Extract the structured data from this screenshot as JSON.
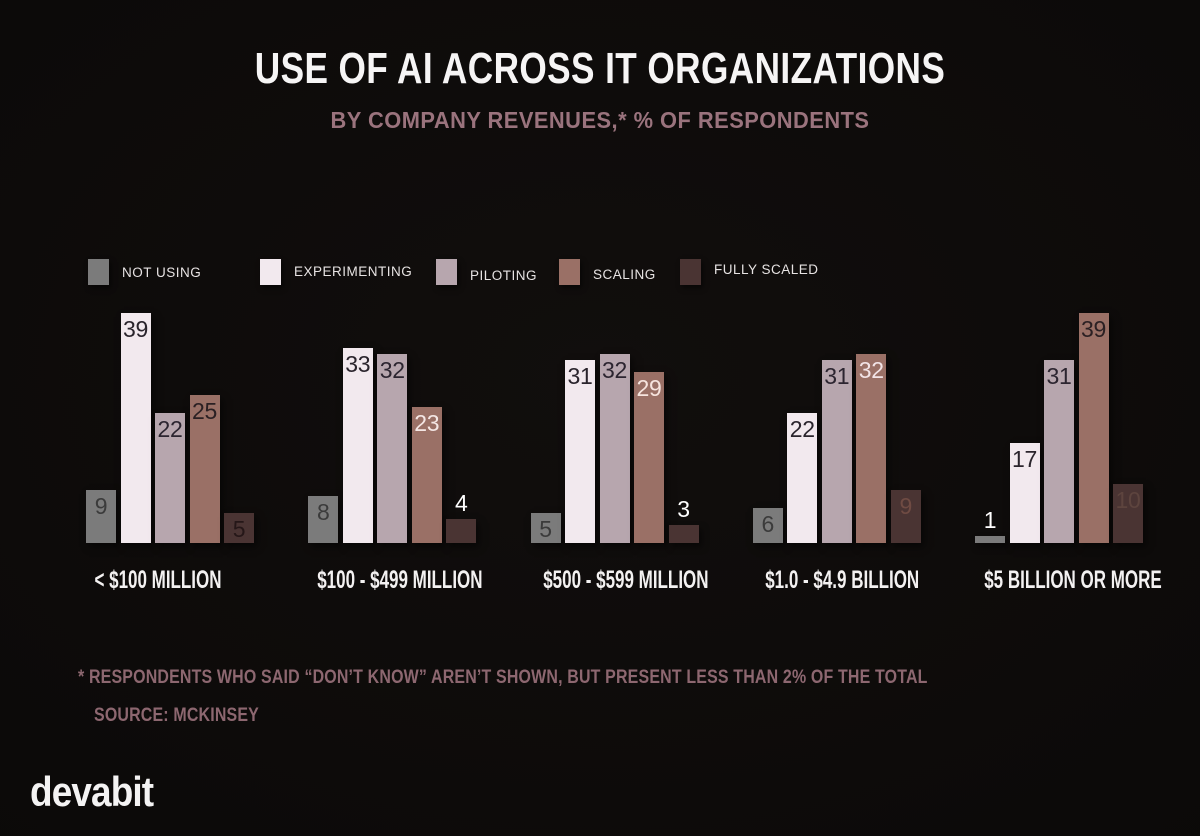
{
  "header": {
    "title": "USE OF AI ACROSS IT ORGANIZATIONS",
    "subtitle": "BY COMPANY REVENUES,* % OF RESPONDENTS"
  },
  "chart_data": {
    "type": "bar",
    "title": "USE OF AI ACROSS IT ORGANIZATIONS",
    "subtitle": "BY COMPANY REVENUES,* % OF RESPONDENTS",
    "unit": "% of respondents",
    "categories": [
      "< $100 MILLION",
      "$100 - $499 MILLION",
      "$500 - $599 MILLION",
      "$1.0 - $4.9 BILLION",
      "$5 BILLION OR MORE"
    ],
    "series": [
      {
        "name": "NOT USING",
        "color": "#7b7b7b",
        "values": [
          9,
          8,
          5,
          6,
          1
        ],
        "label_pos": [
          "in",
          "in",
          "in",
          "in",
          "above"
        ],
        "label_colors": [
          "#3b3b3b",
          "#3b3b3b",
          "#3b3b3b",
          "#3b3b3b",
          "#ffffff"
        ]
      },
      {
        "name": "EXPERIMENTING",
        "color": "#f2e9ee",
        "values": [
          39,
          33,
          31,
          22,
          17
        ],
        "label_pos": [
          "in",
          "in",
          "in",
          "in",
          "in"
        ],
        "label_colors": [
          "#2a242c",
          "#2a242c",
          "#2a242c",
          "#2a242c",
          "#2a242c"
        ]
      },
      {
        "name": "PILOTING",
        "color": "#b7a6ae",
        "values": [
          22,
          32,
          32,
          31,
          31
        ],
        "label_pos": [
          "in",
          "in",
          "in",
          "in",
          "in"
        ],
        "label_colors": [
          "#2c2530",
          "#2c2530",
          "#2c2530",
          "#2c2530",
          "#2c2530"
        ]
      },
      {
        "name": "SCALING",
        "color": "#9a7066",
        "values": [
          25,
          23,
          29,
          32,
          39
        ],
        "label_pos": [
          "in",
          "in",
          "in",
          "in",
          "in"
        ],
        "label_colors": [
          "#2b2023",
          "#f4e6e4",
          "#f6e4de",
          "#f2e3e6",
          "#2b2023"
        ]
      },
      {
        "name": "FULLY SCALED",
        "color": "#4a3433",
        "values": [
          5,
          4,
          3,
          9,
          10
        ],
        "label_pos": [
          "in",
          "above",
          "above",
          "in",
          "in"
        ],
        "label_colors": [
          "#251718",
          "#ffffff",
          "#ffffff",
          "#6f4b43",
          "#5d443e"
        ]
      }
    ],
    "ylim": [
      0,
      40
    ],
    "grid": false,
    "legend_position": "top",
    "value_labels": true
  },
  "footnote": {
    "line1": "* RESPONDENTS WHO SAID “DON’T KNOW” AREN’T SHOWN, BUT PRESENT LESS THAN 2% OF THE TOTAL",
    "line2": "SOURCE: MCKINSEY"
  },
  "branding": {
    "logo_text": "devabit"
  }
}
